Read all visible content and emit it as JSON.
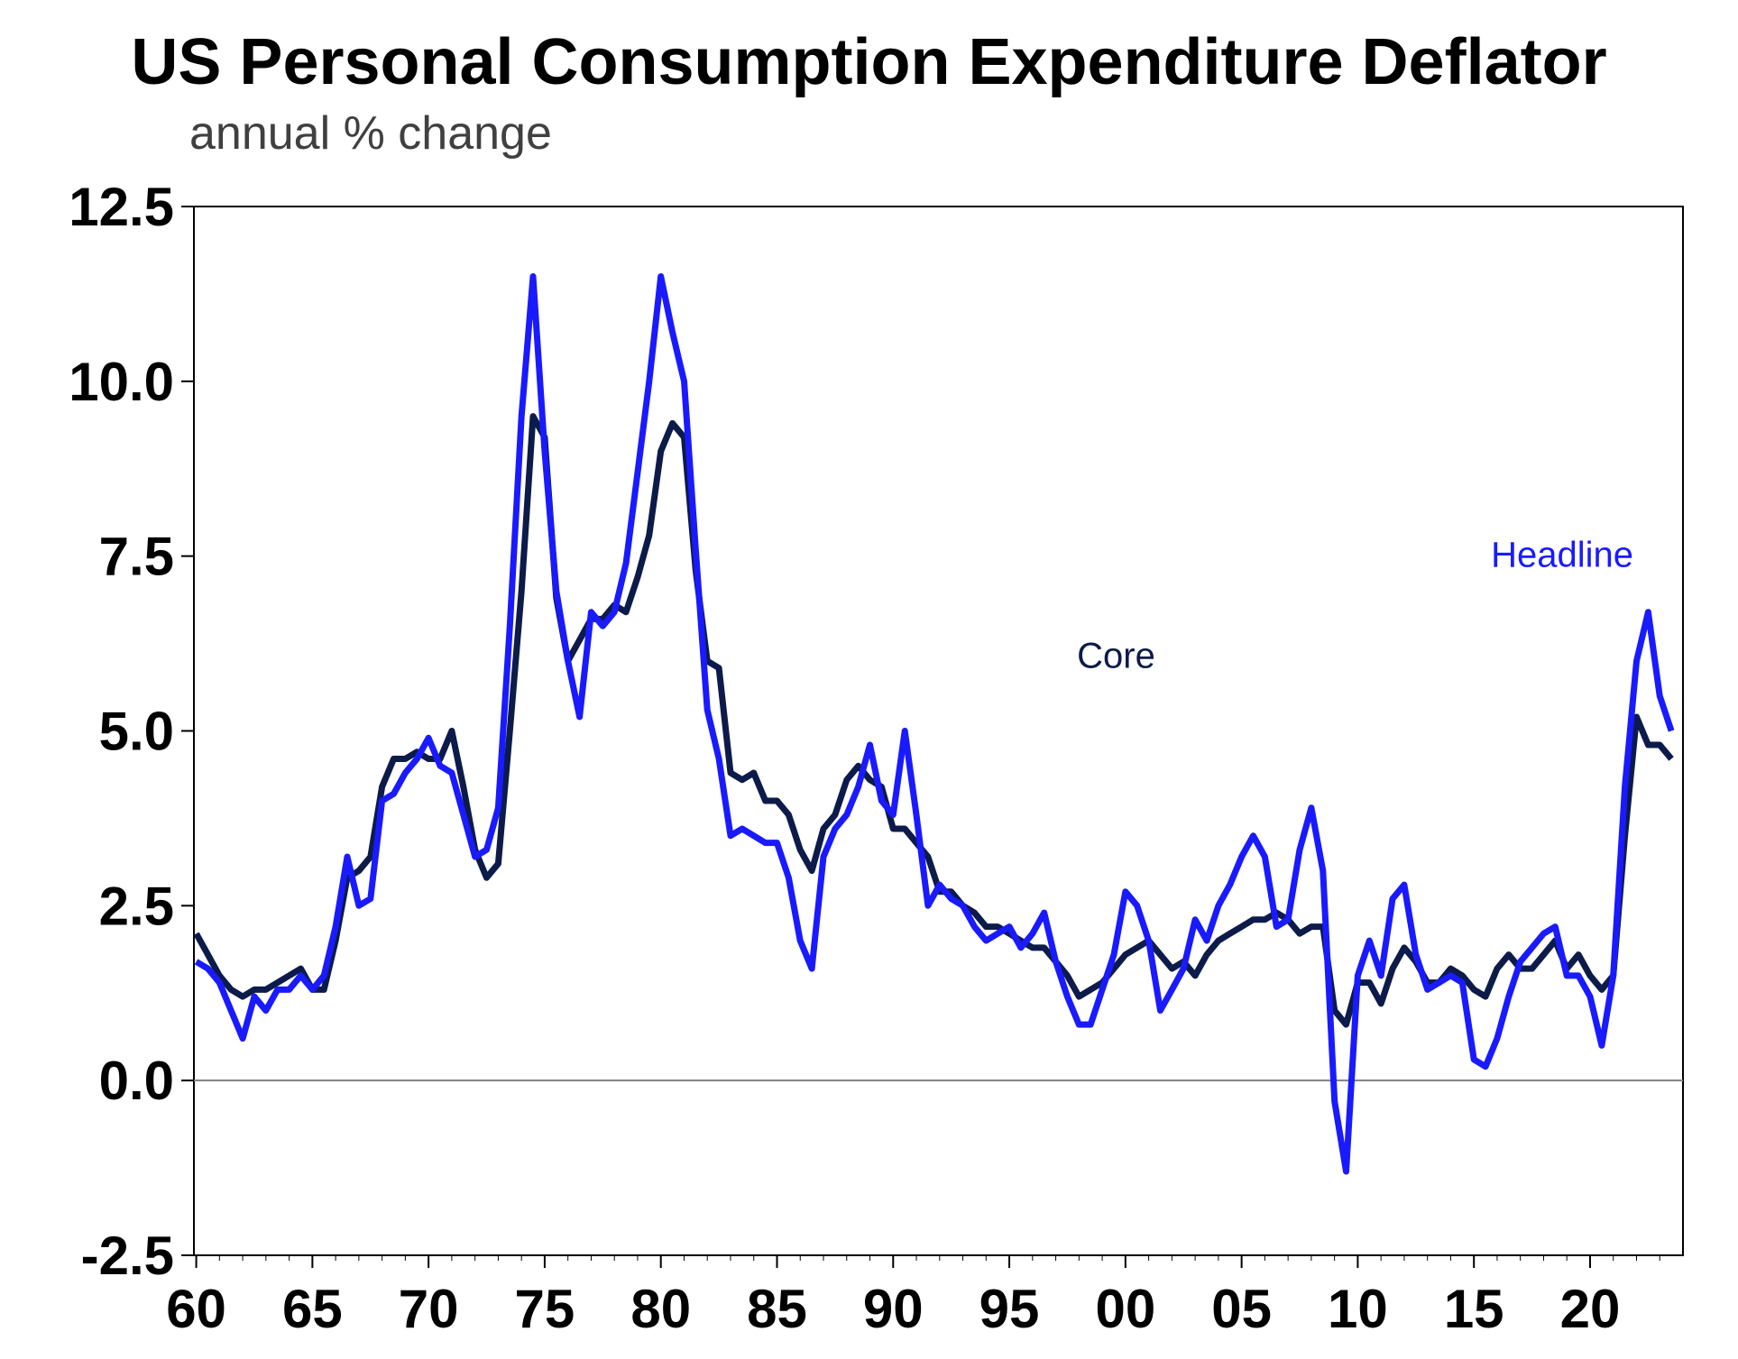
{
  "chart_data": {
    "type": "line",
    "title": "US Personal Consumption Expenditure Deflator",
    "subtitle": "annual % change",
    "xlabel": "",
    "ylabel": "",
    "x_ticks": [
      "60",
      "65",
      "70",
      "75",
      "80",
      "85",
      "90",
      "95",
      "00",
      "05",
      "10",
      "15",
      "20"
    ],
    "y_ticks": [
      "12.5",
      "10.0",
      "7.5",
      "5.0",
      "2.5",
      "0.0",
      "-2.5"
    ],
    "xlim": [
      1960,
      2024
    ],
    "ylim": [
      -2.5,
      12.5
    ],
    "grid": false,
    "zero_line": true,
    "colors": {
      "core": "#0d1b4a",
      "headline": "#1a1aff",
      "zero_line": "#808080",
      "frame": "#000000"
    },
    "series": [
      {
        "name": "Core",
        "color": "#0d1b4a",
        "x": [
          1960.0,
          1960.5,
          1961.0,
          1961.5,
          1962.0,
          1962.5,
          1963.0,
          1963.5,
          1964.0,
          1964.5,
          1965.0,
          1965.5,
          1966.0,
          1966.5,
          1967.0,
          1967.5,
          1968.0,
          1968.5,
          1969.0,
          1969.5,
          1970.0,
          1970.5,
          1971.0,
          1971.5,
          1972.0,
          1972.5,
          1973.0,
          1973.5,
          1974.0,
          1974.5,
          1975.0,
          1975.5,
          1976.0,
          1976.5,
          1977.0,
          1977.5,
          1978.0,
          1978.5,
          1979.0,
          1979.5,
          1980.0,
          1980.5,
          1981.0,
          1981.5,
          1982.0,
          1982.5,
          1983.0,
          1983.5,
          1984.0,
          1984.5,
          1985.0,
          1985.5,
          1986.0,
          1986.5,
          1987.0,
          1987.5,
          1988.0,
          1988.5,
          1989.0,
          1989.5,
          1990.0,
          1990.5,
          1991.0,
          1991.5,
          1992.0,
          1992.5,
          1993.0,
          1993.5,
          1994.0,
          1994.5,
          1995.0,
          1995.5,
          1996.0,
          1996.5,
          1997.0,
          1997.5,
          1998.0,
          1998.5,
          1999.0,
          1999.5,
          2000.0,
          2000.5,
          2001.0,
          2001.5,
          2002.0,
          2002.5,
          2003.0,
          2003.5,
          2004.0,
          2004.5,
          2005.0,
          2005.5,
          2006.0,
          2006.5,
          2007.0,
          2007.5,
          2008.0,
          2008.5,
          2009.0,
          2009.5,
          2010.0,
          2010.5,
          2011.0,
          2011.5,
          2012.0,
          2012.5,
          2013.0,
          2013.5,
          2014.0,
          2014.5,
          2015.0,
          2015.5,
          2016.0,
          2016.5,
          2017.0,
          2017.5,
          2018.0,
          2018.5,
          2019.0,
          2019.5,
          2020.0,
          2020.5,
          2021.0,
          2021.5,
          2022.0,
          2022.5,
          2023.0,
          2023.5
        ],
        "values": [
          2.1,
          1.8,
          1.5,
          1.3,
          1.2,
          1.3,
          1.3,
          1.4,
          1.5,
          1.6,
          1.3,
          1.3,
          2.0,
          2.9,
          3.0,
          3.2,
          4.2,
          4.6,
          4.6,
          4.7,
          4.6,
          4.6,
          5.0,
          4.2,
          3.3,
          2.9,
          3.1,
          5.0,
          7.0,
          9.5,
          9.2,
          6.9,
          6.0,
          6.3,
          6.6,
          6.6,
          6.8,
          6.7,
          7.2,
          7.8,
          9.0,
          9.4,
          9.2,
          7.3,
          6.0,
          5.9,
          4.4,
          4.3,
          4.4,
          4.0,
          4.0,
          3.8,
          3.3,
          3.0,
          3.6,
          3.8,
          4.3,
          4.5,
          4.3,
          4.2,
          3.6,
          3.6,
          3.4,
          3.2,
          2.7,
          2.7,
          2.5,
          2.4,
          2.2,
          2.2,
          2.1,
          2.0,
          1.9,
          1.9,
          1.7,
          1.5,
          1.2,
          1.3,
          1.4,
          1.6,
          1.8,
          1.9,
          2.0,
          1.8,
          1.6,
          1.7,
          1.5,
          1.8,
          2.0,
          2.1,
          2.2,
          2.3,
          2.3,
          2.4,
          2.3,
          2.1,
          2.2,
          2.2,
          1.0,
          0.8,
          1.4,
          1.4,
          1.1,
          1.6,
          1.9,
          1.7,
          1.4,
          1.4,
          1.6,
          1.5,
          1.3,
          1.2,
          1.6,
          1.8,
          1.6,
          1.6,
          1.8,
          2.0,
          1.6,
          1.8,
          1.5,
          1.3,
          1.5,
          3.5,
          5.2,
          4.8,
          4.8,
          4.6
        ]
      },
      {
        "name": "Headline",
        "color": "#1a1aff",
        "x": [
          1960.0,
          1960.5,
          1961.0,
          1961.5,
          1962.0,
          1962.5,
          1963.0,
          1963.5,
          1964.0,
          1964.5,
          1965.0,
          1965.5,
          1966.0,
          1966.5,
          1967.0,
          1967.5,
          1968.0,
          1968.5,
          1969.0,
          1969.5,
          1970.0,
          1970.5,
          1971.0,
          1971.5,
          1972.0,
          1972.5,
          1973.0,
          1973.5,
          1974.0,
          1974.5,
          1975.0,
          1975.5,
          1976.0,
          1976.5,
          1977.0,
          1977.5,
          1978.0,
          1978.5,
          1979.0,
          1979.5,
          1980.0,
          1980.5,
          1981.0,
          1981.5,
          1982.0,
          1982.5,
          1983.0,
          1983.5,
          1984.0,
          1984.5,
          1985.0,
          1985.5,
          1986.0,
          1986.5,
          1987.0,
          1987.5,
          1988.0,
          1988.5,
          1989.0,
          1989.5,
          1990.0,
          1990.5,
          1991.0,
          1991.5,
          1992.0,
          1992.5,
          1993.0,
          1993.5,
          1994.0,
          1994.5,
          1995.0,
          1995.5,
          1996.0,
          1996.5,
          1997.0,
          1997.5,
          1998.0,
          1998.5,
          1999.0,
          1999.5,
          2000.0,
          2000.5,
          2001.0,
          2001.5,
          2002.0,
          2002.5,
          2003.0,
          2003.5,
          2004.0,
          2004.5,
          2005.0,
          2005.5,
          2006.0,
          2006.5,
          2007.0,
          2007.5,
          2008.0,
          2008.5,
          2009.0,
          2009.5,
          2010.0,
          2010.5,
          2011.0,
          2011.5,
          2012.0,
          2012.5,
          2013.0,
          2013.5,
          2014.0,
          2014.5,
          2015.0,
          2015.5,
          2016.0,
          2016.5,
          2017.0,
          2017.5,
          2018.0,
          2018.5,
          2019.0,
          2019.5,
          2020.0,
          2020.5,
          2021.0,
          2021.5,
          2022.0,
          2022.5,
          2023.0,
          2023.5
        ],
        "values": [
          1.7,
          1.6,
          1.4,
          1.0,
          0.6,
          1.2,
          1.0,
          1.3,
          1.3,
          1.5,
          1.3,
          1.5,
          2.2,
          3.2,
          2.5,
          2.6,
          4.0,
          4.1,
          4.4,
          4.6,
          4.9,
          4.5,
          4.4,
          3.8,
          3.2,
          3.3,
          3.9,
          6.5,
          9.5,
          11.5,
          9.0,
          7.0,
          6.0,
          5.2,
          6.7,
          6.5,
          6.7,
          7.4,
          8.7,
          10.0,
          11.5,
          10.7,
          10.0,
          7.6,
          5.3,
          4.6,
          3.5,
          3.6,
          3.5,
          3.4,
          3.4,
          2.9,
          2.0,
          1.6,
          3.2,
          3.6,
          3.8,
          4.2,
          4.8,
          4.0,
          3.8,
          5.0,
          3.8,
          2.5,
          2.8,
          2.6,
          2.5,
          2.2,
          2.0,
          2.1,
          2.2,
          1.9,
          2.1,
          2.4,
          1.7,
          1.2,
          0.8,
          0.8,
          1.3,
          1.8,
          2.7,
          2.5,
          2.0,
          1.0,
          1.3,
          1.6,
          2.3,
          2.0,
          2.5,
          2.8,
          3.2,
          3.5,
          3.2,
          2.2,
          2.3,
          3.3,
          3.9,
          3.0,
          -0.3,
          -1.3,
          1.5,
          2.0,
          1.5,
          2.6,
          2.8,
          1.8,
          1.3,
          1.4,
          1.5,
          1.4,
          0.3,
          0.2,
          0.6,
          1.2,
          1.7,
          1.9,
          2.1,
          2.2,
          1.5,
          1.5,
          1.2,
          0.5,
          1.5,
          4.2,
          6.0,
          6.7,
          5.5,
          5.0
        ]
      }
    ],
    "annotations": [
      {
        "text": "Core",
        "series": "Core"
      },
      {
        "text": "Headline",
        "series": "Headline"
      }
    ]
  }
}
